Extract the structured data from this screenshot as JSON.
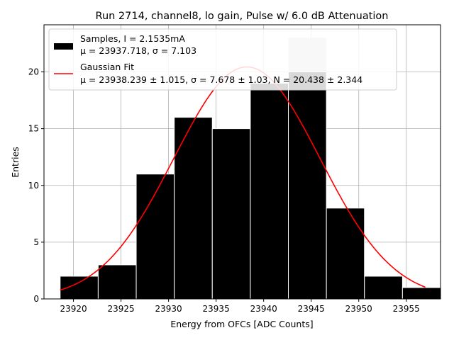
{
  "chart_data": {
    "type": "bar",
    "title": "Run 2714, channel8, lo gain, Pulse w/ 6.0 dB Attenuation",
    "xlabel": "Energy from OFCs [ADC Counts]",
    "ylabel": "Entries",
    "xlim": [
      23916.9,
      23958.6
    ],
    "ylim": [
      0,
      24.15
    ],
    "grid": true,
    "legend_position": "top-left",
    "x_ticks": [
      {
        "value": 23920,
        "label": "23920"
      },
      {
        "value": 23925,
        "label": "23925"
      },
      {
        "value": 23930,
        "label": "23930"
      },
      {
        "value": 23935,
        "label": "23935"
      },
      {
        "value": 23940,
        "label": "23940"
      },
      {
        "value": 23945,
        "label": "23945"
      },
      {
        "value": 23950,
        "label": "23950"
      },
      {
        "value": 23955,
        "label": "23955"
      }
    ],
    "y_ticks": [
      {
        "value": 0,
        "label": "0"
      },
      {
        "value": 5,
        "label": "5"
      },
      {
        "value": 10,
        "label": "10"
      },
      {
        "value": 15,
        "label": "15"
      },
      {
        "value": 20,
        "label": "20"
      }
    ],
    "histogram": {
      "name": "Samples, I = 2.1535mA",
      "stats_line": "μ = 23937.718, σ = 7.103",
      "color": "#000000",
      "bins": [
        {
          "x0": 23918.6,
          "x1": 23922.6,
          "count": 2
        },
        {
          "x0": 23922.6,
          "x1": 23926.6,
          "count": 3
        },
        {
          "x0": 23926.6,
          "x1": 23930.6,
          "count": 11
        },
        {
          "x0": 23930.6,
          "x1": 23934.6,
          "count": 16
        },
        {
          "x0": 23934.6,
          "x1": 23938.6,
          "count": 15
        },
        {
          "x0": 23938.6,
          "x1": 23942.6,
          "count": 19
        },
        {
          "x0": 23942.6,
          "x1": 23946.6,
          "count": 20
        },
        {
          "x0": 23946.6,
          "x1": 23950.6,
          "count": 8
        },
        {
          "x0": 23950.6,
          "x1": 23954.6,
          "count": 2
        },
        {
          "x0": 23954.6,
          "x1": 23958.6,
          "count": 1
        }
      ],
      "shadow_bar": {
        "x0": 23942.6,
        "x1": 23946.6,
        "count": 23,
        "color": "#cccccc"
      }
    },
    "fit": {
      "name": "Gaussian Fit",
      "stats_line": "μ = 23938.239 ± 1.015, σ = 7.678 ± 1.03, N = 20.438 ± 2.344",
      "color": "#ff0000",
      "mu": 23938.239,
      "sigma": 7.678,
      "amplitude": 20.438,
      "x_range": [
        23918.6,
        23957.0
      ]
    }
  }
}
